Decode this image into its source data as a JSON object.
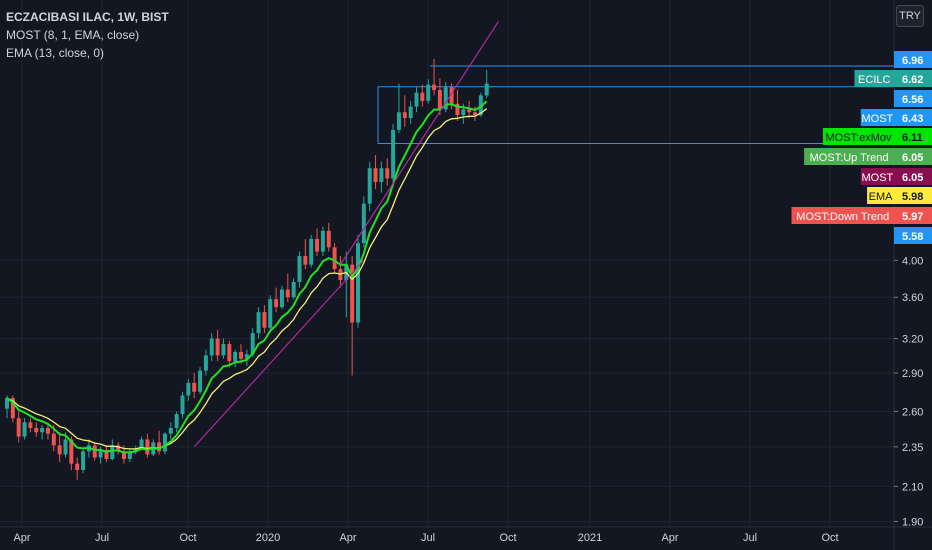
{
  "legend": {
    "symbol": "ECZACIBASI ILAC, 1W, BIST",
    "most": "MOST (8, 1, EMA, close)",
    "ema": "EMA (13, close, 0)"
  },
  "currency_button": "TRY",
  "colors": {
    "background": "#131722",
    "up": "#26a69a",
    "down": "#ef5350",
    "most_line": "#22e022",
    "ema_line": "#f5f07a",
    "trend": "#b02a9e",
    "hline": "#2196f3"
  },
  "chart_data": {
    "type": "candlestick",
    "y_scale": "log",
    "ylim": [
      1.87,
      8.4
    ],
    "y_ticks": [
      "2.10",
      "2.35",
      "2.60",
      "2.90",
      "3.20",
      "3.60",
      "4.00",
      "1.90"
    ],
    "x_ticks": [
      "Apr",
      "Jul",
      "Oct",
      "2020",
      "Apr",
      "Jul",
      "Oct",
      "2021",
      "Apr",
      "Jul",
      "Oct"
    ],
    "candles_start": "2019-03",
    "candles": [
      [
        2.62,
        2.72,
        2.55,
        2.7
      ],
      [
        2.7,
        2.72,
        2.52,
        2.55
      ],
      [
        2.55,
        2.6,
        2.38,
        2.42
      ],
      [
        2.42,
        2.55,
        2.4,
        2.52
      ],
      [
        2.52,
        2.55,
        2.45,
        2.48
      ],
      [
        2.48,
        2.52,
        2.42,
        2.45
      ],
      [
        2.45,
        2.5,
        2.4,
        2.48
      ],
      [
        2.48,
        2.52,
        2.4,
        2.44
      ],
      [
        2.44,
        2.5,
        2.32,
        2.36
      ],
      [
        2.36,
        2.45,
        2.25,
        2.3
      ],
      [
        2.3,
        2.45,
        2.28,
        2.4
      ],
      [
        2.4,
        2.42,
        2.2,
        2.24
      ],
      [
        2.24,
        2.28,
        2.14,
        2.2
      ],
      [
        2.2,
        2.34,
        2.18,
        2.32
      ],
      [
        2.32,
        2.4,
        2.28,
        2.36
      ],
      [
        2.36,
        2.38,
        2.26,
        2.28
      ],
      [
        2.28,
        2.35,
        2.24,
        2.33
      ],
      [
        2.33,
        2.36,
        2.25,
        2.27
      ],
      [
        2.27,
        2.4,
        2.26,
        2.36
      ],
      [
        2.36,
        2.38,
        2.3,
        2.32
      ],
      [
        2.32,
        2.36,
        2.24,
        2.27
      ],
      [
        2.27,
        2.34,
        2.25,
        2.32
      ],
      [
        2.32,
        2.36,
        2.3,
        2.34
      ],
      [
        2.34,
        2.42,
        2.33,
        2.4
      ],
      [
        2.4,
        2.44,
        2.28,
        2.3
      ],
      [
        2.3,
        2.4,
        2.29,
        2.38
      ],
      [
        2.38,
        2.46,
        2.3,
        2.32
      ],
      [
        2.32,
        2.45,
        2.3,
        2.44
      ],
      [
        2.44,
        2.52,
        2.4,
        2.48
      ],
      [
        2.48,
        2.6,
        2.45,
        2.58
      ],
      [
        2.58,
        2.75,
        2.55,
        2.72
      ],
      [
        2.72,
        2.85,
        2.68,
        2.82
      ],
      [
        2.82,
        2.9,
        2.7,
        2.75
      ],
      [
        2.75,
        2.95,
        2.73,
        2.92
      ],
      [
        2.92,
        3.1,
        2.88,
        3.05
      ],
      [
        3.05,
        3.25,
        3.0,
        3.2
      ],
      [
        3.2,
        3.28,
        3.0,
        3.05
      ],
      [
        3.05,
        3.2,
        3.02,
        3.15
      ],
      [
        3.15,
        3.18,
        2.95,
        3.0
      ],
      [
        3.0,
        3.1,
        2.95,
        3.08
      ],
      [
        3.08,
        3.15,
        2.98,
        3.02
      ],
      [
        3.02,
        3.1,
        2.96,
        3.06
      ],
      [
        3.06,
        3.3,
        3.04,
        3.25
      ],
      [
        3.25,
        3.5,
        3.2,
        3.45
      ],
      [
        3.45,
        3.52,
        3.25,
        3.3
      ],
      [
        3.3,
        3.62,
        3.28,
        3.58
      ],
      [
        3.58,
        3.7,
        3.45,
        3.5
      ],
      [
        3.5,
        3.72,
        3.48,
        3.68
      ],
      [
        3.68,
        3.85,
        3.55,
        3.6
      ],
      [
        3.6,
        3.8,
        3.58,
        3.76
      ],
      [
        3.76,
        4.1,
        3.7,
        4.05
      ],
      [
        4.05,
        4.25,
        3.9,
        3.95
      ],
      [
        3.95,
        4.3,
        3.92,
        4.25
      ],
      [
        4.25,
        4.38,
        4.05,
        4.1
      ],
      [
        4.1,
        4.4,
        4.05,
        4.35
      ],
      [
        4.35,
        4.45,
        4.1,
        4.15
      ],
      [
        4.15,
        4.2,
        3.85,
        3.9
      ],
      [
        3.9,
        4.05,
        3.7,
        3.78
      ],
      [
        3.78,
        4.1,
        3.4,
        3.95
      ],
      [
        3.95,
        4.05,
        2.88,
        3.35
      ],
      [
        3.35,
        4.3,
        3.3,
        4.2
      ],
      [
        4.2,
        4.8,
        4.15,
        4.7
      ],
      [
        4.7,
        5.3,
        4.6,
        5.2
      ],
      [
        5.2,
        5.4,
        4.9,
        5.0
      ],
      [
        5.0,
        5.3,
        4.85,
        5.2
      ],
      [
        5.2,
        5.35,
        4.95,
        5.05
      ],
      [
        5.05,
        5.9,
        5.0,
        5.8
      ],
      [
        5.8,
        6.62,
        5.75,
        6.1
      ],
      [
        6.1,
        6.4,
        5.85,
        6.0
      ],
      [
        6.0,
        6.3,
        5.9,
        6.2
      ],
      [
        6.2,
        6.55,
        6.1,
        6.45
      ],
      [
        6.45,
        6.6,
        6.2,
        6.3
      ],
      [
        6.3,
        6.7,
        6.25,
        6.6
      ],
      [
        6.6,
        7.1,
        6.4,
        6.5
      ],
      [
        6.5,
        6.72,
        6.05,
        6.15
      ],
      [
        6.15,
        6.65,
        6.1,
        6.55
      ],
      [
        6.55,
        6.62,
        6.15,
        6.25
      ],
      [
        6.25,
        6.5,
        5.95,
        6.05
      ],
      [
        6.05,
        6.25,
        5.9,
        6.15
      ],
      [
        6.15,
        6.3,
        6.0,
        6.1
      ],
      [
        6.1,
        6.2,
        5.95,
        6.05
      ],
      [
        6.05,
        6.45,
        6.02,
        6.4
      ],
      [
        6.4,
        6.88,
        6.35,
        6.62
      ]
    ],
    "price_labels": [
      {
        "text": "",
        "value": "6.96",
        "color": "#2196f3",
        "text_color": "#ffffff"
      },
      {
        "text": "ECILC",
        "value": "6.62",
        "color": "#26a69a",
        "text_color": "#ffffff"
      },
      {
        "text": "",
        "value": "6.56",
        "color": "#2196f3",
        "text_color": "#ffffff"
      },
      {
        "text": "MOST",
        "value": "6.43",
        "color": "#2196f3",
        "text_color": "#ffffff"
      },
      {
        "text": "MOST:exMov",
        "value": "6.11",
        "color": "#00e600",
        "text_color": "#131722"
      },
      {
        "text": "MOST:Up Trend",
        "value": "6.05",
        "color": "#4caf50",
        "text_color": "#ffffff"
      },
      {
        "text": "MOST",
        "value": "6.05",
        "color": "#880e4f",
        "text_color": "#ffffff"
      },
      {
        "text": "EMA",
        "value": "5.98",
        "color": "#ffeb3b",
        "text_color": "#131722"
      },
      {
        "text": "MOST:Down Trend",
        "value": "5.97",
        "color": "#ef5350",
        "text_color": "#ffffff"
      },
      {
        "text": "",
        "value": "5.58",
        "color": "#2196f3",
        "text_color": "#ffffff"
      }
    ],
    "horizontal_lines": [
      6.96,
      6.56,
      5.58
    ],
    "trend_line": [
      [
        57,
        3.95
      ],
      [
        84,
        7.9
      ]
    ],
    "trend_line_lower": [
      [
        32,
        2.35
      ],
      [
        61,
        4.0
      ]
    ]
  }
}
